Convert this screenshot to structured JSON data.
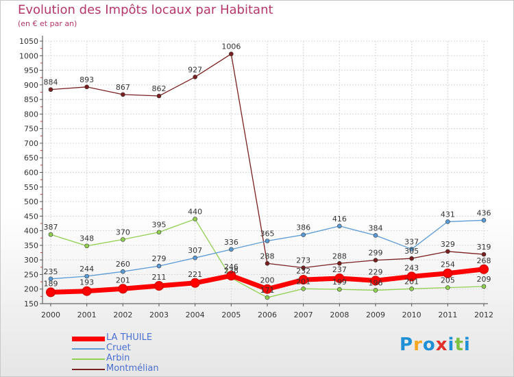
{
  "chart_data": {
    "type": "line",
    "title": "Evolution des Impôts locaux par Habitant",
    "subtitle": "(en € et par an)",
    "categories": [
      "2000",
      "2001",
      "2002",
      "2003",
      "2004",
      "2005",
      "2006",
      "2007",
      "2008",
      "2009",
      "2010",
      "2011",
      "2012"
    ],
    "ylim": [
      150,
      1050
    ],
    "yticks": [
      150,
      200,
      250,
      300,
      350,
      400,
      450,
      500,
      550,
      600,
      650,
      700,
      750,
      800,
      850,
      900,
      950,
      1000,
      1050
    ],
    "series": [
      {
        "name": "LA THUILE",
        "color": "#ff0000",
        "values": [
          189,
          193,
          201,
          211,
          221,
          246,
          200,
          232,
          237,
          229,
          243,
          254,
          268
        ]
      },
      {
        "name": "Cruet",
        "color": "#5b9bd5",
        "values": [
          235,
          244,
          260,
          279,
          307,
          336,
          365,
          386,
          416,
          384,
          337,
          431,
          436
        ]
      },
      {
        "name": "Arbin",
        "color": "#92d050",
        "values": [
          387,
          348,
          370,
          395,
          440,
          238,
          171,
          201,
          199,
          196,
          201,
          205,
          209
        ]
      },
      {
        "name": "Montmélian",
        "color": "#7a1f1f",
        "values": [
          884,
          893,
          867,
          862,
          927,
          1006,
          288,
          273,
          288,
          299,
          305,
          329,
          319
        ]
      }
    ],
    "legend_position": "bottom-left",
    "grid": true
  },
  "logo": {
    "text": "Proxiti",
    "letters": [
      "P",
      "r",
      "o",
      "x",
      "i",
      "t",
      "i"
    ],
    "colors": [
      "#1f8fd6",
      "#f5a623",
      "#1f8fd6",
      "#e0312b",
      "#1f8fd6",
      "#7cc142",
      "#1f8fd6"
    ]
  }
}
